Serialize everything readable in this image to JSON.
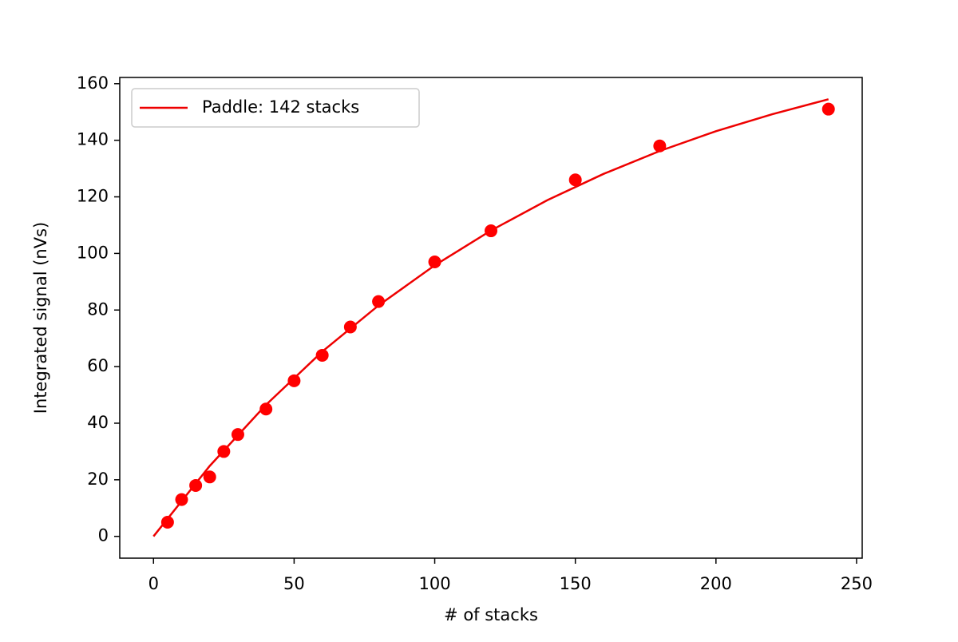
{
  "chart_data": {
    "type": "scatter",
    "xlabel": "# of stacks",
    "ylabel": "Integrated signal (nVs)",
    "xlim": [
      -12,
      252
    ],
    "ylim": [
      -7.7,
      162.2
    ],
    "xticks": [
      0,
      50,
      100,
      150,
      200,
      250
    ],
    "yticks": [
      0,
      20,
      40,
      60,
      80,
      100,
      120,
      140,
      160
    ],
    "legend": "upper left",
    "series": [
      {
        "type": "line",
        "name": "Paddle: 142 stacks",
        "color": "#ee0000",
        "x": [
          0,
          20,
          40,
          60,
          80,
          100,
          120,
          140,
          160,
          180,
          200,
          220,
          240
        ],
        "values": [
          0,
          24.9,
          46.5,
          65.3,
          81.6,
          95.8,
          108.1,
          118.8,
          128.1,
          136.2,
          143.2,
          149.2,
          154.5
        ]
      },
      {
        "type": "scatter",
        "color": "#ff0000",
        "x": [
          5,
          10,
          15,
          20,
          25,
          30,
          40,
          50,
          60,
          70,
          80,
          100,
          120,
          150,
          180,
          240
        ],
        "values": [
          5,
          13,
          18,
          21,
          30,
          36,
          45,
          55,
          64,
          74,
          83,
          97,
          108,
          126,
          138,
          151
        ]
      }
    ]
  }
}
